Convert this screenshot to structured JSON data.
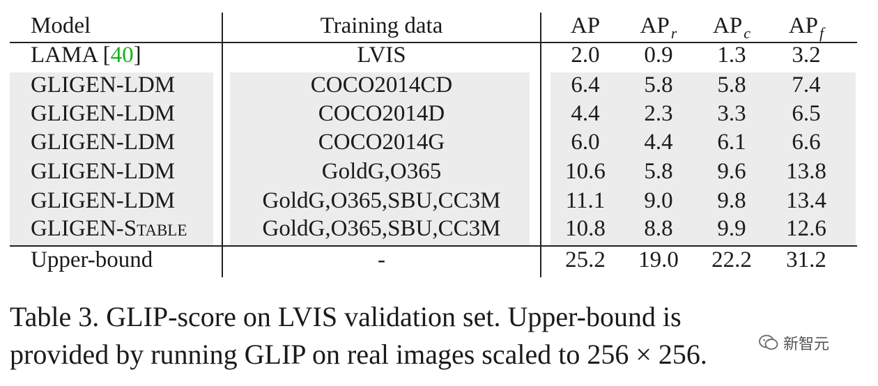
{
  "table": {
    "headers": {
      "model": "Model",
      "training": "Training data",
      "ap": "AP",
      "ap_r_base": "AP",
      "ap_r_sub": "r",
      "ap_c_base": "AP",
      "ap_c_sub": "c",
      "ap_f_base": "AP",
      "ap_f_sub": "f"
    },
    "rows": [
      {
        "model": "LAMA [",
        "cite": "40",
        "model_suffix": "]",
        "training": "LVIS",
        "ap": "2.0",
        "ap_r": "0.9",
        "ap_c": "1.3",
        "ap_f": "3.2"
      },
      {
        "model": "GLIGEN-LDM",
        "training": "COCO2014CD",
        "ap": "6.4",
        "ap_r": "5.8",
        "ap_c": "5.8",
        "ap_f": "7.4"
      },
      {
        "model": "GLIGEN-LDM",
        "training": "COCO2014D",
        "ap": "4.4",
        "ap_r": "2.3",
        "ap_c": "3.3",
        "ap_f": "6.5"
      },
      {
        "model": "GLIGEN-LDM",
        "training": "COCO2014G",
        "ap": "6.0",
        "ap_r": "4.4",
        "ap_c": "6.1",
        "ap_f": "6.6"
      },
      {
        "model": "GLIGEN-LDM",
        "training": "GoldG,O365",
        "ap": "10.6",
        "ap_r": "5.8",
        "ap_c": "9.6",
        "ap_f": "13.8"
      },
      {
        "model": "GLIGEN-LDM",
        "training": "GoldG,O365,SBU,CC3M",
        "ap": "11.1",
        "ap_r": "9.0",
        "ap_c": "9.8",
        "ap_f": "13.4"
      },
      {
        "model": "GLIGEN-Stable",
        "training": "GoldG,O365,SBU,CC3M",
        "ap": "10.8",
        "ap_r": "8.8",
        "ap_c": "9.9",
        "ap_f": "12.6"
      },
      {
        "model": "Upper-bound",
        "training": "-",
        "ap": "25.2",
        "ap_r": "19.0",
        "ap_c": "22.2",
        "ap_f": "31.2"
      }
    ]
  },
  "caption": {
    "line1": "Table 3.  GLIP-score on LVIS validation set.  Upper-bound is",
    "line2": "provided by running GLIP on real images scaled to 256 × 256."
  },
  "watermark": {
    "text": "新智元",
    "icon": "wechat-icon"
  }
}
